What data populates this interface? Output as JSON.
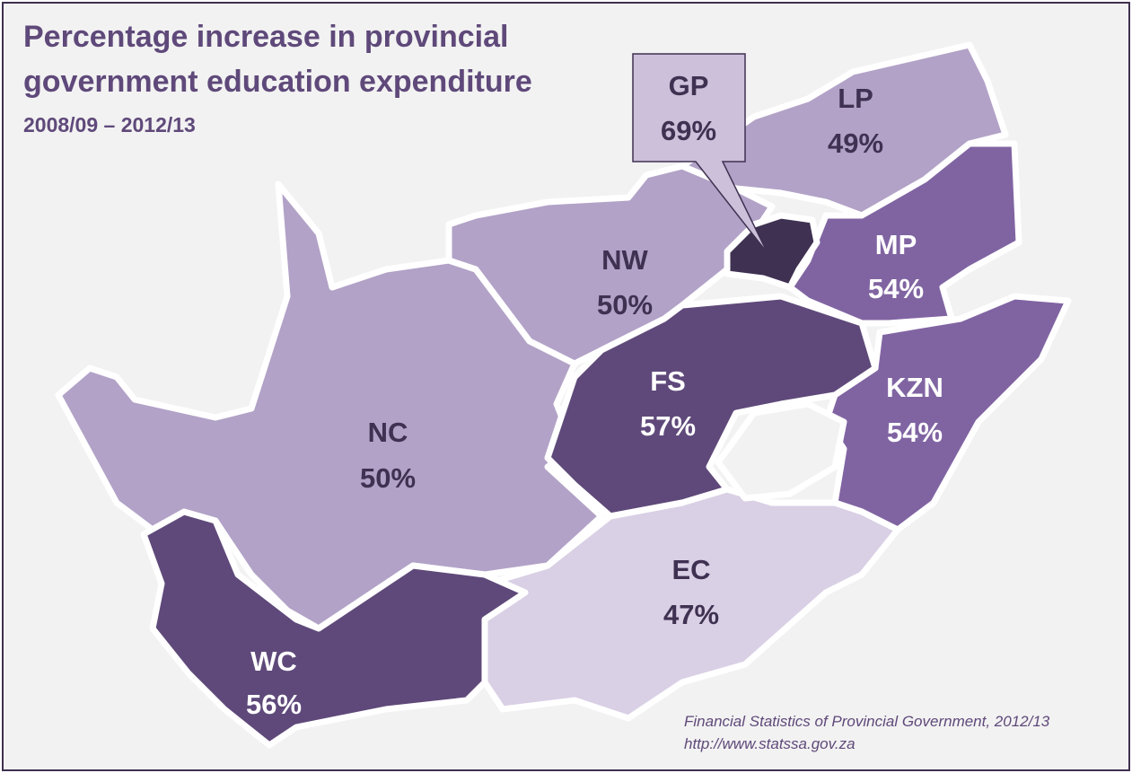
{
  "title_line1": "Percentage increase in provincial",
  "title_line2": "government education expenditure",
  "subtitle": "2008/09 – 2012/13",
  "source_line1": "Financial Statistics of Provincial Government,  2012/13",
  "source_line2": "http://www.statssa.gov.za",
  "colors": {
    "background": "#f2f2f2",
    "border": "#3f3151",
    "title": "#5f497a",
    "light": "#b2a2c7",
    "mid": "#8064a2",
    "dark": "#5f497a",
    "darkest": "#3f3151",
    "palest": "#d9d0e5"
  },
  "chart_data": {
    "type": "choropleth",
    "title": "Percentage increase in provincial government education expenditure, 2008/09 – 2012/13",
    "regions": [
      {
        "code": "GP",
        "value": "69%"
      },
      {
        "code": "LP",
        "value": "49%"
      },
      {
        "code": "NW",
        "value": "50%"
      },
      {
        "code": "MP",
        "value": "54%"
      },
      {
        "code": "FS",
        "value": "57%"
      },
      {
        "code": "KZN",
        "value": "54%"
      },
      {
        "code": "NC",
        "value": "50%"
      },
      {
        "code": "EC",
        "value": "47%"
      },
      {
        "code": "WC",
        "value": "56%"
      }
    ]
  }
}
